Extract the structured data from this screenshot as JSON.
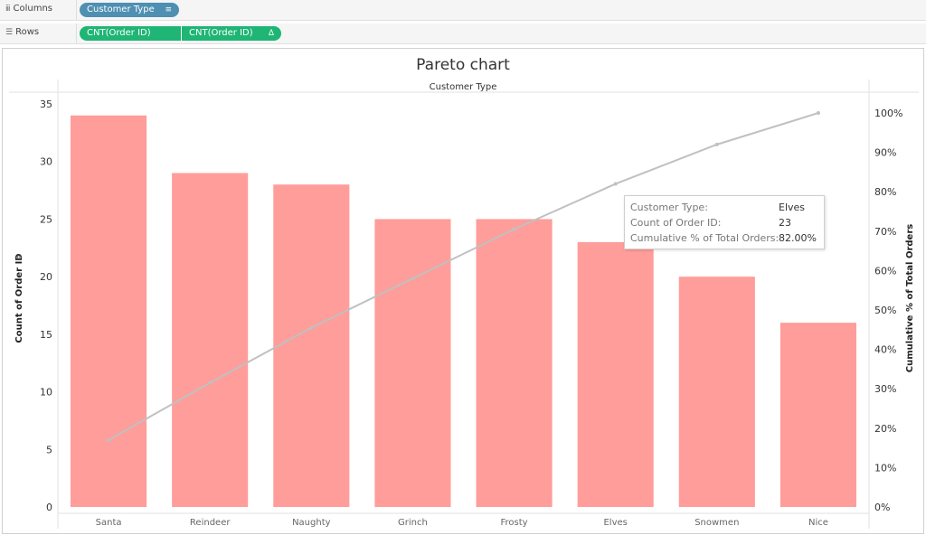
{
  "shelves": {
    "columns": {
      "label": "Columns",
      "icon": "columns-icon",
      "pill": "Customer Type",
      "pill_icon": "sort-icon"
    },
    "rows": {
      "label": "Rows",
      "icon": "rows-icon",
      "pills": [
        "CNT(Order ID)",
        "CNT(Order ID)"
      ],
      "pill2_icon": "delta-icon"
    }
  },
  "chart_data": {
    "type": "bar",
    "title": "Pareto chart",
    "header": "Customer Type",
    "categories": [
      "Santa",
      "Reindeer",
      "Naughty",
      "Grinch",
      "Frosty",
      "Elves",
      "Snowmen",
      "Nice"
    ],
    "series": [
      {
        "name": "Count of Order ID",
        "type": "bar",
        "axis": "left",
        "values": [
          34,
          29,
          28,
          25,
          25,
          23,
          20,
          16
        ]
      },
      {
        "name": "Cumulative % of Total Orders",
        "type": "line",
        "axis": "right",
        "values": [
          17,
          31.5,
          45.5,
          58,
          70.5,
          82,
          92,
          100
        ]
      }
    ],
    "ylabel": "Count of Order ID",
    "ylabel_icon": "sort-icon",
    "y2label": "Cumulative % of Total Orders",
    "ylim": [
      0,
      35
    ],
    "yticks": [
      0,
      5,
      10,
      15,
      20,
      25,
      30,
      35
    ],
    "y2lim": [
      0,
      100
    ],
    "y2ticks": [
      "0%",
      "10%",
      "20%",
      "30%",
      "40%",
      "50%",
      "60%",
      "70%",
      "80%",
      "90%",
      "100%"
    ],
    "grid": false,
    "colors": {
      "bar": "#ff9d9a",
      "line": "#c0c0c0"
    }
  },
  "tooltip": {
    "rows": [
      {
        "key": "Customer Type:",
        "value": "Elves"
      },
      {
        "key": "Count of Order ID:",
        "value": "23"
      },
      {
        "key": "Cumulative % of Total Orders:",
        "value": "82.00%"
      }
    ]
  }
}
